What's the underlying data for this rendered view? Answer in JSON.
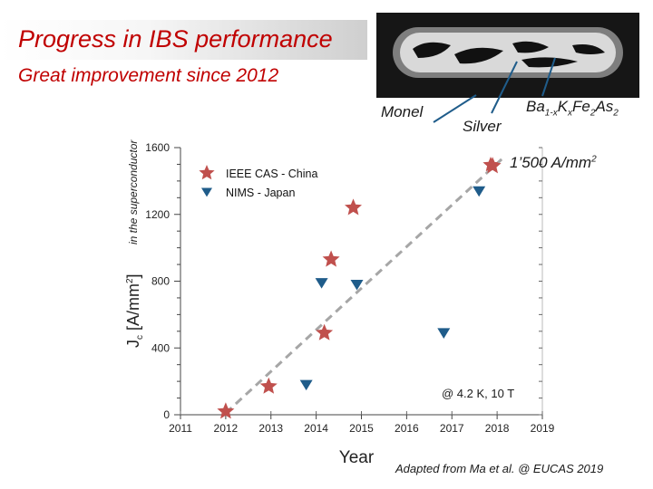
{
  "title": "Progress in IBS performance",
  "subtitle": "Great improvement since 2012",
  "annotations": {
    "monel": "Monel",
    "silver": "Silver",
    "compound": {
      "base1": "Ba",
      "sub1": "1-x",
      "base2": "K",
      "sub2": "x",
      "base3": "Fe",
      "sub3": "2",
      "base4": "As",
      "sub4": "2"
    },
    "record": "1’500 A/mm",
    "record_sup": "2",
    "condition": "@ 4.2 K, 10 T",
    "credit": "Adapted from Ma et al. @ EUCAS 2019"
  },
  "colors": {
    "china": "#c0504d",
    "japan": "#1f5c8a",
    "title": "#c00000",
    "trend": "#a6a6a6"
  },
  "chart_data": {
    "type": "scatter",
    "title": "",
    "xlabel": "Year",
    "ylabel": {
      "main": "J",
      "sub": "c",
      "unit": " [A/mm",
      "sup": "2",
      "close": "]",
      "extra": "in the superconductor"
    },
    "xlim": [
      2011,
      2019
    ],
    "ylim": [
      0,
      1600
    ],
    "x_ticks": [
      "2011",
      "2012",
      "2013",
      "2014",
      "2015",
      "2016",
      "2017",
      "2018",
      "2019"
    ],
    "y_ticks": [
      "0",
      "400",
      "800",
      "1200",
      "1600"
    ],
    "series": [
      {
        "name": "IEEE CAS - China",
        "marker": "star",
        "points": [
          [
            2012.0,
            20
          ],
          [
            2012.95,
            170
          ],
          [
            2014.18,
            490
          ],
          [
            2014.33,
            930
          ],
          [
            2014.82,
            1240
          ],
          [
            2017.9,
            1490
          ]
        ]
      },
      {
        "name": "NIMS - Japan",
        "marker": "triangle-down",
        "points": [
          [
            2013.78,
            180
          ],
          [
            2014.12,
            790
          ],
          [
            2014.9,
            780
          ],
          [
            2016.82,
            490
          ],
          [
            2017.6,
            1340
          ]
        ]
      }
    ],
    "trend": {
      "style": "dashed",
      "points": [
        [
          2012.0,
          10
        ],
        [
          2018.1,
          1530
        ]
      ]
    }
  }
}
